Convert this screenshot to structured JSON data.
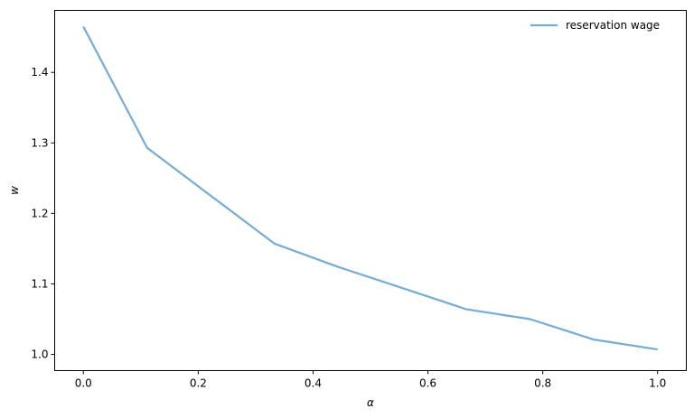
{
  "chart_data": {
    "type": "line",
    "title": "",
    "xlabel": "α",
    "ylabel": "w",
    "xlim": [
      -0.05,
      1.05
    ],
    "ylim": [
      0.977,
      1.488
    ],
    "xticks": [
      "0.0",
      "0.2",
      "0.4",
      "0.6",
      "0.8",
      "1.0"
    ],
    "yticks": [
      "1.0",
      "1.1",
      "1.2",
      "1.3",
      "1.4"
    ],
    "grid": false,
    "legend_position": "top-right",
    "series": [
      {
        "name": "reservation wage",
        "color": "#74acd6",
        "x": [
          0.0,
          0.111,
          0.222,
          0.333,
          0.444,
          0.556,
          0.667,
          0.778,
          0.889,
          1.0
        ],
        "y": [
          1.465,
          1.293,
          1.225,
          1.157,
          1.124,
          1.094,
          1.064,
          1.05,
          1.021,
          1.007
        ]
      }
    ]
  }
}
